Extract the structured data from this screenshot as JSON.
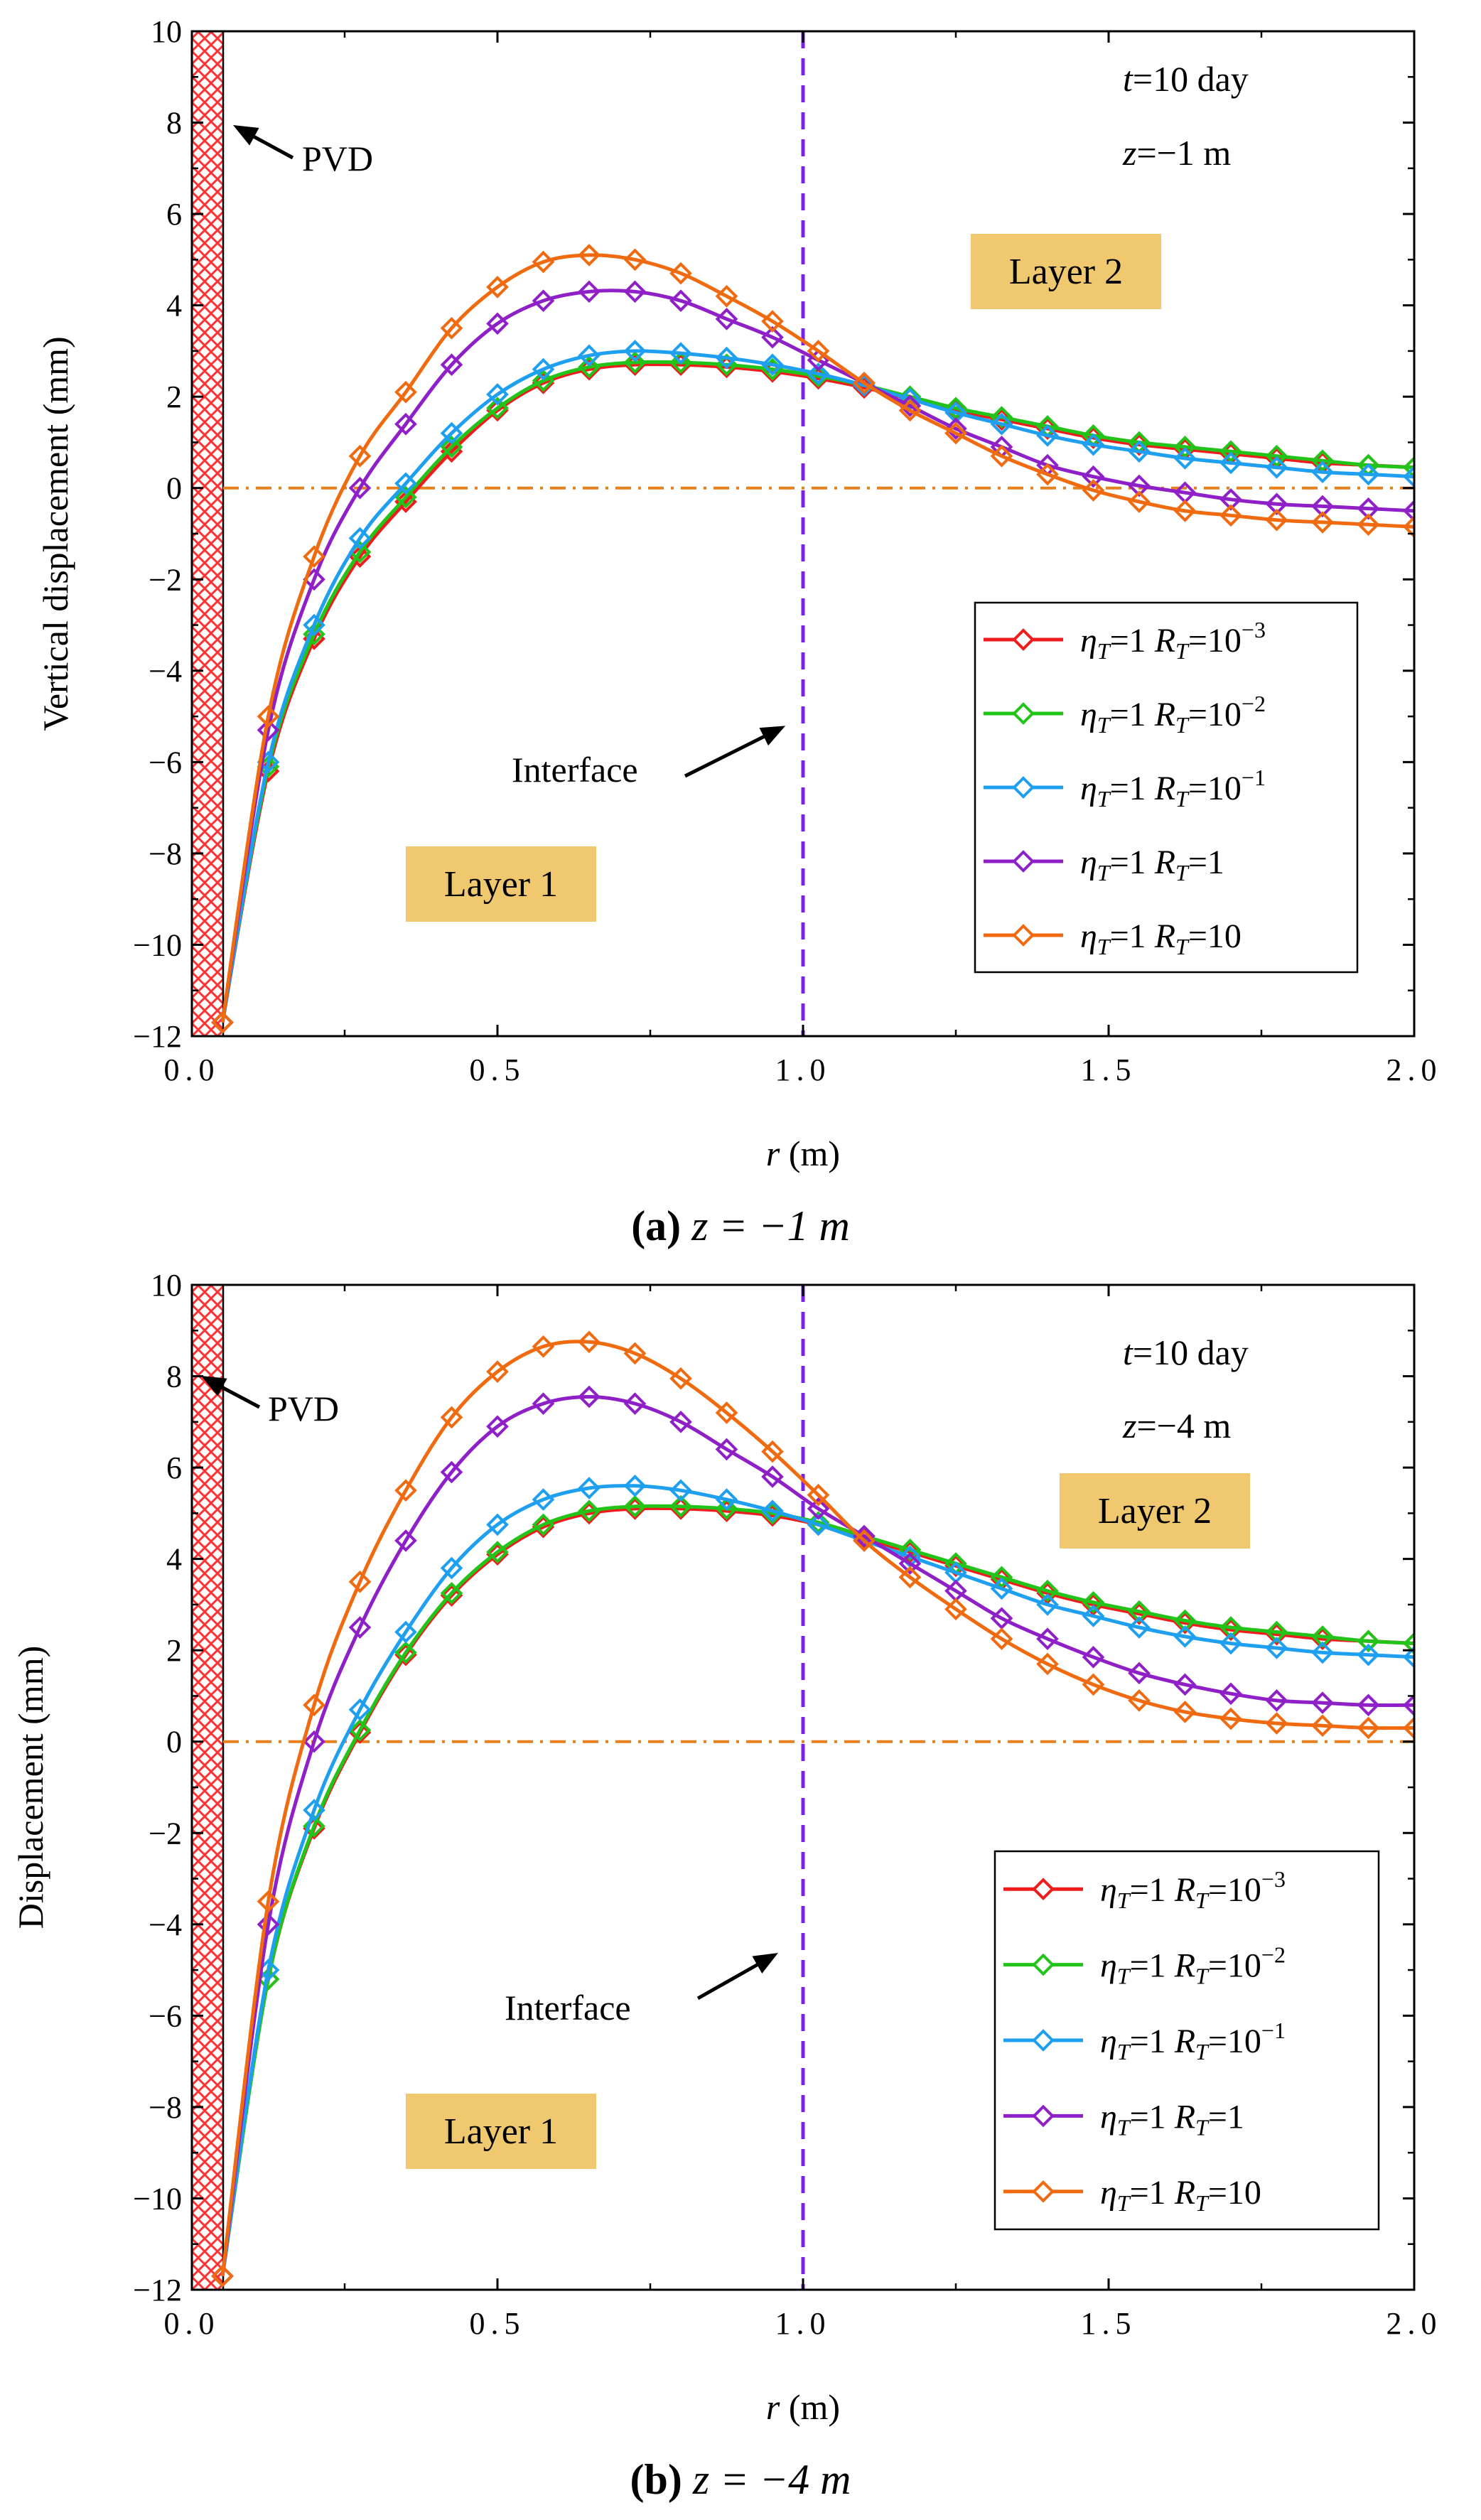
{
  "colors": {
    "red": "#ee1c1c",
    "green": "#22c41a",
    "blue": "#1e9ff0",
    "purple": "#8f1fc6",
    "orange": "#f06a0f",
    "interface_line": "#7a22e8",
    "zero_line": "#e8801e",
    "pvd": "#ff3333",
    "layer_box": "#f0c870"
  },
  "chart_data": [
    {
      "id": "a",
      "type": "line",
      "caption_letter": "(a)",
      "caption_eq": "z = −1 m",
      "xlabel_var": "r",
      "xlabel_unit": " (m)",
      "ylabel": "Vertical displacement  (mm)",
      "xlim": [
        0,
        2
      ],
      "ylim": [
        -12,
        10
      ],
      "x_ticks": [
        "0.0",
        "0.5",
        "1.0",
        "1.5",
        "2.0"
      ],
      "y_ticks": [
        "10",
        "8",
        "6",
        "4",
        "2",
        "0",
        "−2",
        "−4",
        "−6",
        "−8",
        "−10",
        "−12"
      ],
      "annotations": {
        "time_var": "t",
        "time_text": "=10 day",
        "depth_var": "z",
        "depth_text": "=−1 m",
        "pvd": "PVD",
        "interface": "Interface",
        "layer1": "Layer 1",
        "layer2": "Layer 2"
      },
      "x": [
        0.05,
        0.125,
        0.2,
        0.275,
        0.35,
        0.425,
        0.5,
        0.575,
        0.65,
        0.725,
        0.8,
        0.875,
        0.95,
        1.025,
        1.1,
        1.175,
        1.25,
        1.325,
        1.4,
        1.475,
        1.55,
        1.625,
        1.7,
        1.775,
        1.85,
        1.925,
        2.0
      ],
      "series": [
        {
          "name": "ηT=1 RT=10−3",
          "legend_eta": "η",
          "legend_eta_sub": "T",
          "legend_mid": "=1 ",
          "legend_R": "R",
          "legend_R_sub": "T",
          "legend_tail": "=10",
          "legend_sup": "−3",
          "color": "#ee1c1c",
          "values": [
            -11.7,
            -6.2,
            -3.3,
            -1.5,
            -0.3,
            0.8,
            1.7,
            2.3,
            2.6,
            2.7,
            2.7,
            2.65,
            2.55,
            2.4,
            2.2,
            1.95,
            1.7,
            1.5,
            1.3,
            1.1,
            0.95,
            0.85,
            0.75,
            0.65,
            0.55,
            0.5,
            0.45
          ]
        },
        {
          "name": "ηT=1 RT=10−2",
          "legend_eta": "η",
          "legend_eta_sub": "T",
          "legend_mid": "=1 ",
          "legend_R": "R",
          "legend_R_sub": "T",
          "legend_tail": "=10",
          "legend_sup": "−2",
          "color": "#22c41a",
          "values": [
            -11.7,
            -6.1,
            -3.2,
            -1.4,
            -0.2,
            0.9,
            1.75,
            2.35,
            2.65,
            2.75,
            2.75,
            2.7,
            2.6,
            2.45,
            2.25,
            2.0,
            1.75,
            1.55,
            1.35,
            1.15,
            1.0,
            0.9,
            0.8,
            0.7,
            0.6,
            0.5,
            0.45
          ]
        },
        {
          "name": "ηT=1 RT=10−1",
          "legend_eta": "η",
          "legend_eta_sub": "T",
          "legend_mid": "=1 ",
          "legend_R": "R",
          "legend_R_sub": "T",
          "legend_tail": "=10",
          "legend_sup": "−1",
          "color": "#1e9ff0",
          "values": [
            -11.7,
            -6.0,
            -3.0,
            -1.1,
            0.1,
            1.2,
            2.05,
            2.6,
            2.9,
            3.0,
            2.95,
            2.85,
            2.7,
            2.5,
            2.25,
            1.95,
            1.65,
            1.4,
            1.15,
            0.95,
            0.8,
            0.65,
            0.55,
            0.45,
            0.35,
            0.3,
            0.25
          ]
        },
        {
          "name": "ηT=1 RT=1",
          "legend_eta": "η",
          "legend_eta_sub": "T",
          "legend_mid": "=1 ",
          "legend_R": "R",
          "legend_R_sub": "T",
          "legend_tail": "=1",
          "legend_sup": "",
          "color": "#8f1fc6",
          "values": [
            -11.7,
            -5.3,
            -2.0,
            0.0,
            1.4,
            2.7,
            3.6,
            4.1,
            4.3,
            4.3,
            4.1,
            3.7,
            3.3,
            2.8,
            2.3,
            1.8,
            1.3,
            0.9,
            0.5,
            0.25,
            0.05,
            -0.1,
            -0.25,
            -0.35,
            -0.4,
            -0.45,
            -0.5
          ]
        },
        {
          "name": "ηT=1 RT=10",
          "legend_eta": "η",
          "legend_eta_sub": "T",
          "legend_mid": "=1 ",
          "legend_R": "R",
          "legend_R_sub": "T",
          "legend_tail": "=10",
          "legend_sup": "",
          "color": "#f06a0f",
          "values": [
            -11.7,
            -5.0,
            -1.5,
            0.7,
            2.1,
            3.5,
            4.4,
            4.95,
            5.1,
            5.0,
            4.7,
            4.2,
            3.65,
            3.0,
            2.3,
            1.7,
            1.2,
            0.7,
            0.3,
            -0.05,
            -0.3,
            -0.5,
            -0.6,
            -0.7,
            -0.75,
            -0.8,
            -0.85
          ]
        }
      ]
    },
    {
      "id": "b",
      "type": "line",
      "caption_letter": "(b)",
      "caption_eq": "z = −4 m",
      "xlabel_var": "r",
      "xlabel_unit": " (m)",
      "ylabel": "Displacement  (mm)",
      "xlim": [
        0,
        2
      ],
      "ylim": [
        -12,
        10
      ],
      "x_ticks": [
        "0.0",
        "0.5",
        "1.0",
        "1.5",
        "2.0"
      ],
      "y_ticks": [
        "10",
        "8",
        "6",
        "4",
        "2",
        "0",
        "−2",
        "−4",
        "−6",
        "−8",
        "−10",
        "−12"
      ],
      "annotations": {
        "time_var": "t",
        "time_text": "=10 day",
        "depth_var": "z",
        "depth_text": "=−4 m",
        "pvd": "PVD",
        "interface": "Interface",
        "layer1": "Layer 1",
        "layer2": "Layer 2"
      },
      "x": [
        0.05,
        0.125,
        0.2,
        0.275,
        0.35,
        0.425,
        0.5,
        0.575,
        0.65,
        0.725,
        0.8,
        0.875,
        0.95,
        1.025,
        1.1,
        1.175,
        1.25,
        1.325,
        1.4,
        1.475,
        1.55,
        1.625,
        1.7,
        1.775,
        1.85,
        1.925,
        2.0
      ],
      "series": [
        {
          "name": "ηT=1 RT=10−3",
          "legend_eta": "η",
          "legend_eta_sub": "T",
          "legend_mid": "=1 ",
          "legend_R": "R",
          "legend_R_sub": "T",
          "legend_tail": "=10",
          "legend_sup": "−3",
          "color": "#ee1c1c",
          "values": [
            -11.7,
            -5.2,
            -1.9,
            0.2,
            1.9,
            3.2,
            4.1,
            4.7,
            5.0,
            5.1,
            5.1,
            5.05,
            4.95,
            4.75,
            4.45,
            4.15,
            3.85,
            3.55,
            3.25,
            3.0,
            2.8,
            2.6,
            2.45,
            2.35,
            2.25,
            2.2,
            2.15
          ]
        },
        {
          "name": "ηT=1 RT=10−2",
          "legend_eta": "η",
          "legend_eta_sub": "T",
          "legend_mid": "=1 ",
          "legend_R": "R",
          "legend_R_sub": "T",
          "legend_tail": "=10",
          "legend_sup": "−2",
          "color": "#22c41a",
          "values": [
            -11.7,
            -5.2,
            -1.85,
            0.25,
            1.95,
            3.25,
            4.15,
            4.75,
            5.05,
            5.15,
            5.15,
            5.1,
            5.0,
            4.8,
            4.5,
            4.2,
            3.9,
            3.6,
            3.3,
            3.05,
            2.85,
            2.65,
            2.5,
            2.4,
            2.3,
            2.2,
            2.15
          ]
        },
        {
          "name": "ηT=1 RT=10−1",
          "legend_eta": "η",
          "legend_eta_sub": "T",
          "legend_mid": "=1 ",
          "legend_R": "R",
          "legend_R_sub": "T",
          "legend_tail": "=10",
          "legend_sup": "−1",
          "color": "#1e9ff0",
          "values": [
            -11.7,
            -5.0,
            -1.5,
            0.7,
            2.4,
            3.8,
            4.75,
            5.3,
            5.55,
            5.6,
            5.5,
            5.3,
            5.05,
            4.75,
            4.4,
            4.05,
            3.7,
            3.35,
            3.0,
            2.75,
            2.5,
            2.3,
            2.15,
            2.05,
            1.95,
            1.9,
            1.85
          ]
        },
        {
          "name": "ηT=1 RT=1",
          "legend_eta": "η",
          "legend_eta_sub": "T",
          "legend_mid": "=1 ",
          "legend_R": "R",
          "legend_R_sub": "T",
          "legend_tail": "=1",
          "legend_sup": "",
          "color": "#8f1fc6",
          "values": [
            -11.7,
            -4.0,
            0.0,
            2.5,
            4.4,
            5.9,
            6.9,
            7.4,
            7.55,
            7.4,
            7.0,
            6.4,
            5.8,
            5.1,
            4.5,
            3.9,
            3.3,
            2.7,
            2.25,
            1.85,
            1.5,
            1.25,
            1.05,
            0.9,
            0.85,
            0.8,
            0.8
          ]
        },
        {
          "name": "ηT=1 RT=10",
          "legend_eta": "η",
          "legend_eta_sub": "T",
          "legend_mid": "=1 ",
          "legend_R": "R",
          "legend_R_sub": "T",
          "legend_tail": "=10",
          "legend_sup": "",
          "color": "#f06a0f",
          "values": [
            -11.7,
            -3.5,
            0.8,
            3.5,
            5.5,
            7.1,
            8.1,
            8.65,
            8.75,
            8.5,
            7.95,
            7.2,
            6.35,
            5.4,
            4.4,
            3.6,
            2.9,
            2.25,
            1.7,
            1.25,
            0.9,
            0.65,
            0.5,
            0.4,
            0.35,
            0.3,
            0.3
          ]
        }
      ]
    }
  ]
}
